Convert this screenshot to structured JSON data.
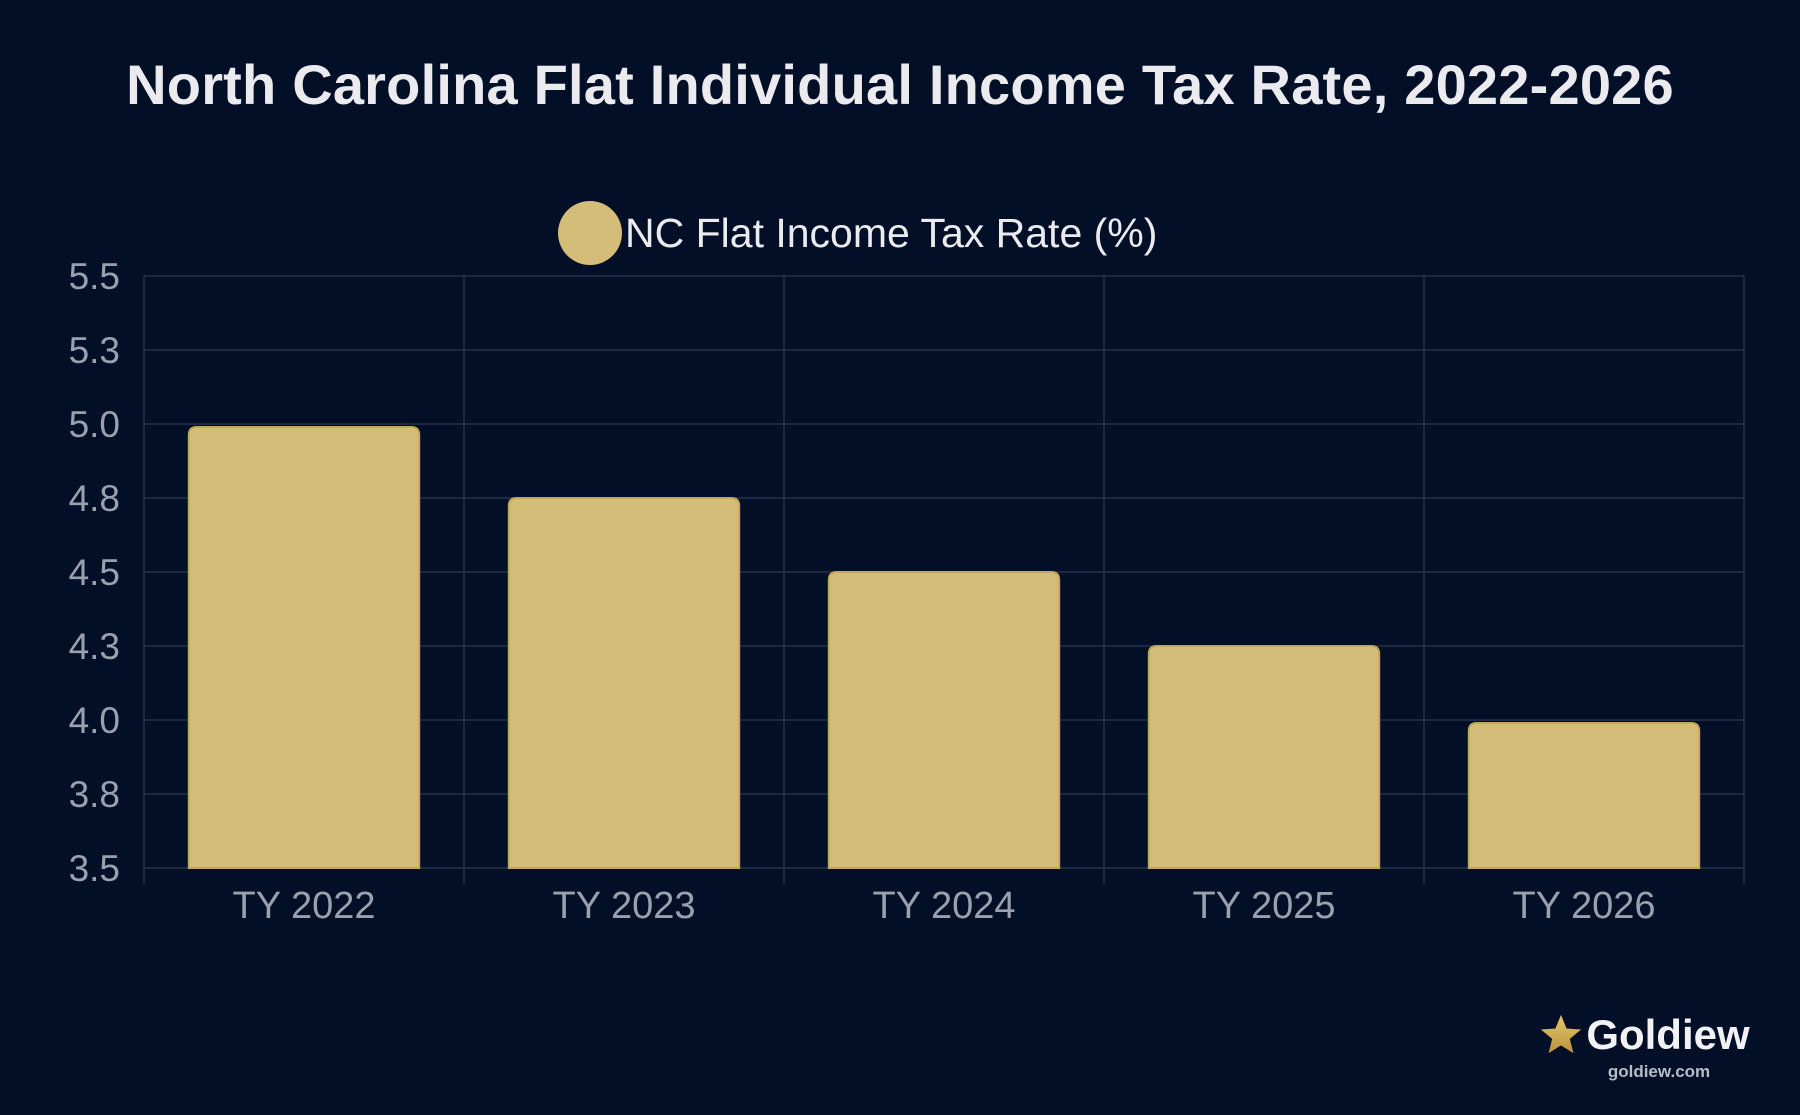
{
  "chart_data": {
    "type": "bar",
    "title": "North Carolina Flat Individual Income Tax Rate, 2022-2026",
    "categories": [
      "TY 2022",
      "TY 2023",
      "TY 2024",
      "TY 2025",
      "TY 2026"
    ],
    "series": [
      {
        "name": "NC Flat Income Tax Rate (%)",
        "values": [
          4.99,
          4.75,
          4.5,
          4.25,
          3.99
        ]
      }
    ],
    "ylim": [
      3.5,
      5.5
    ],
    "yticks": [
      "5.5",
      "5.3",
      "5.0",
      "4.8",
      "4.5",
      "4.3",
      "4.0",
      "3.8",
      "3.5"
    ],
    "xlabel": "",
    "ylabel": "",
    "grid": true,
    "legend": "top-center",
    "colors": {
      "background": "#020f26",
      "bar": "#d4bd78",
      "bar_border": "#c2a85c",
      "grid": "#25324a",
      "tick_text": "#9aa0ad",
      "title": "#ebebef",
      "legend_text": "#ebebef"
    }
  },
  "brand": {
    "name": "Goldiew",
    "url": "goldiew.com",
    "icon": "star-icon",
    "colors": {
      "star": "#d8b75c",
      "star_dark": "#b8943c"
    }
  }
}
